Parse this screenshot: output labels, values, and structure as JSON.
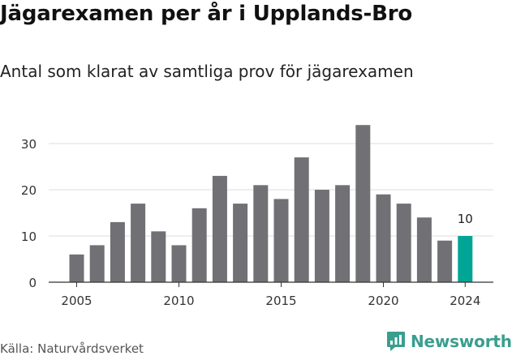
{
  "title": "Jägarexamen per år i Upplands-Bro",
  "subtitle": "Antal som klarat av samtliga prov för jägarexamen",
  "source": "Källa: Naturvårdsverket",
  "brand": {
    "name": "Newsworthy",
    "color": "#3a9e8f"
  },
  "colors": {
    "bar": "#717074",
    "highlight": "#00a596",
    "grid": "#dedede",
    "axis": "#333333",
    "tick_text": "#333333"
  },
  "chart_data": {
    "type": "bar",
    "title": "Jägarexamen per år i Upplands-Bro",
    "subtitle": "Antal som klarat av samtliga prov för jägarexamen",
    "xlabel": "",
    "ylabel": "",
    "categories": [
      2005,
      2006,
      2007,
      2008,
      2009,
      2010,
      2011,
      2012,
      2013,
      2014,
      2015,
      2016,
      2017,
      2018,
      2019,
      2020,
      2021,
      2022,
      2023,
      2024
    ],
    "values": [
      6,
      8,
      13,
      17,
      11,
      8,
      16,
      23,
      17,
      21,
      18,
      27,
      20,
      21,
      34,
      19,
      17,
      14,
      9,
      10
    ],
    "highlight_category": 2024,
    "data_labels": [
      {
        "category": 2024,
        "text": "10"
      }
    ],
    "ylim": [
      0,
      34
    ],
    "y_ticks": [
      0,
      10,
      20,
      30
    ],
    "x_ticks": [
      2005,
      2010,
      2015,
      2020,
      2024
    ],
    "grid": true,
    "legend": "none"
  }
}
